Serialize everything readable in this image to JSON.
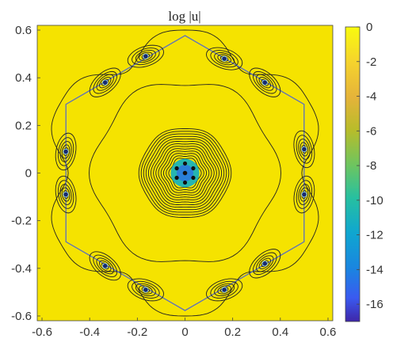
{
  "chart_data": {
    "type": "heatmap",
    "title": "log |u|",
    "xlabel": "",
    "ylabel": "",
    "xlim": [
      -0.62,
      0.62
    ],
    "ylim": [
      -0.62,
      0.62
    ],
    "x_ticks": [
      "-0.6",
      "-0.4",
      "-0.2",
      "0",
      "0.2",
      "0.4",
      "0.6"
    ],
    "y_ticks": [
      "0.6",
      "0.4",
      "0.2",
      "0",
      "-0.2",
      "-0.4",
      "-0.6"
    ],
    "colorbar": {
      "min": -17,
      "max": 0,
      "ticks": [
        "0",
        "-2",
        "-4",
        "-6",
        "-8",
        "-10",
        "-12",
        "-14",
        "-16"
      ],
      "colormap": "parula"
    },
    "hexagon": {
      "circumradius": 0.577,
      "orientation": "pointy-top",
      "color": "#5a6fc0"
    },
    "center_cluster": {
      "x": 0,
      "y": 0,
      "points": 6,
      "min_log_value": -17
    },
    "local_minima": [
      {
        "x": -0.165,
        "y": 0.49
      },
      {
        "x": -0.335,
        "y": 0.38
      },
      {
        "x": 0.165,
        "y": 0.48
      },
      {
        "x": 0.335,
        "y": 0.38
      },
      {
        "x": -0.5,
        "y": 0.09
      },
      {
        "x": -0.5,
        "y": -0.09
      },
      {
        "x": 0.5,
        "y": 0.1
      },
      {
        "x": 0.5,
        "y": -0.09
      },
      {
        "x": -0.335,
        "y": -0.39
      },
      {
        "x": -0.165,
        "y": -0.49
      },
      {
        "x": 0.335,
        "y": -0.38
      },
      {
        "x": 0.165,
        "y": -0.49
      }
    ],
    "background_color": "#f5e300"
  }
}
